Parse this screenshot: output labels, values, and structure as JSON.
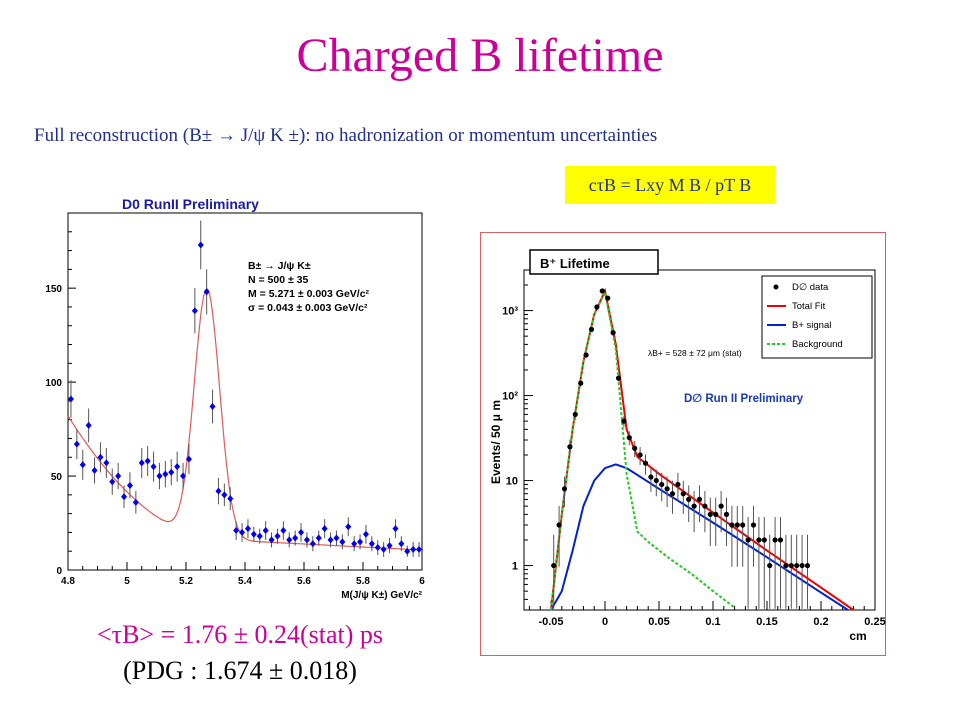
{
  "slide": {
    "title": "Charged B lifetime",
    "subtitle": "Full reconstruction (B± → J/ψ K ±): no hadronization or momentum uncertainties",
    "formula": "cτB = Lxy M B / pT B",
    "result": "<τB> = 1.76 ± 0.24(stat) ps",
    "pdg": "(PDG : 1.674 ± 0.018)"
  },
  "colors": {
    "title": "#cc0099",
    "subtitle": "#1f2f8f",
    "formula_bg": "#ffff00",
    "mass_points": "#0000ee",
    "mass_fit": "#e05a5a",
    "total_fit": "#ee0000",
    "signal": "#0022cc",
    "background": "#22cc22"
  },
  "chart_data": [
    {
      "type": "scatter",
      "title": "D0 RunII  Preliminary",
      "xlabel": "M(J/ψ K±) GeV/c²",
      "ylabel": "",
      "xlim": [
        4.8,
        6.0
      ],
      "ylim": [
        0,
        190
      ],
      "xticks": [
        "4.8",
        "5",
        "5.2",
        "5.4",
        "5.6",
        "5.8",
        "6"
      ],
      "yticks": [
        "0",
        "50",
        "100",
        "150"
      ],
      "annotations": [
        "B± → J/ψ K±",
        "N  =  500 ± 35",
        "M  =  5.271 ± 0.003 GeV/c²",
        "σ = 0.043 ± 0.003 GeV/c²"
      ],
      "series": [
        {
          "points": [
            {
              "x": 4.81,
              "y": 91,
              "err": 10
            },
            {
              "x": 4.83,
              "y": 67,
              "err": 8
            },
            {
              "x": 4.85,
              "y": 56,
              "err": 8
            },
            {
              "x": 4.87,
              "y": 77,
              "err": 9
            },
            {
              "x": 4.89,
              "y": 53,
              "err": 7
            },
            {
              "x": 4.91,
              "y": 60,
              "err": 8
            },
            {
              "x": 4.93,
              "y": 57,
              "err": 8
            },
            {
              "x": 4.95,
              "y": 47,
              "err": 7
            },
            {
              "x": 4.97,
              "y": 50,
              "err": 7
            },
            {
              "x": 4.99,
              "y": 39,
              "err": 6
            },
            {
              "x": 5.01,
              "y": 45,
              "err": 7
            },
            {
              "x": 5.03,
              "y": 36,
              "err": 6
            },
            {
              "x": 5.05,
              "y": 57,
              "err": 8
            },
            {
              "x": 5.07,
              "y": 58,
              "err": 8
            },
            {
              "x": 5.09,
              "y": 55,
              "err": 8
            },
            {
              "x": 5.11,
              "y": 50,
              "err": 7
            },
            {
              "x": 5.13,
              "y": 51,
              "err": 7
            },
            {
              "x": 5.15,
              "y": 52,
              "err": 7
            },
            {
              "x": 5.17,
              "y": 55,
              "err": 8
            },
            {
              "x": 5.19,
              "y": 50,
              "err": 7
            },
            {
              "x": 5.21,
              "y": 59,
              "err": 8
            },
            {
              "x": 5.23,
              "y": 138,
              "err": 12
            },
            {
              "x": 5.25,
              "y": 173,
              "err": 13
            },
            {
              "x": 5.27,
              "y": 148,
              "err": 12
            },
            {
              "x": 5.29,
              "y": 87,
              "err": 9
            },
            {
              "x": 5.31,
              "y": 42,
              "err": 7
            },
            {
              "x": 5.33,
              "y": 40,
              "err": 6
            },
            {
              "x": 5.35,
              "y": 38,
              "err": 6
            },
            {
              "x": 5.37,
              "y": 21,
              "err": 5
            },
            {
              "x": 5.39,
              "y": 20,
              "err": 5
            },
            {
              "x": 5.41,
              "y": 22,
              "err": 5
            },
            {
              "x": 5.43,
              "y": 19,
              "err": 4
            },
            {
              "x": 5.45,
              "y": 18,
              "err": 4
            },
            {
              "x": 5.47,
              "y": 21,
              "err": 5
            },
            {
              "x": 5.49,
              "y": 16,
              "err": 4
            },
            {
              "x": 5.51,
              "y": 18,
              "err": 4
            },
            {
              "x": 5.53,
              "y": 21,
              "err": 5
            },
            {
              "x": 5.55,
              "y": 16,
              "err": 4
            },
            {
              "x": 5.57,
              "y": 17,
              "err": 4
            },
            {
              "x": 5.59,
              "y": 20,
              "err": 5
            },
            {
              "x": 5.61,
              "y": 16,
              "err": 4
            },
            {
              "x": 5.63,
              "y": 14,
              "err": 4
            },
            {
              "x": 5.65,
              "y": 17,
              "err": 4
            },
            {
              "x": 5.67,
              "y": 22,
              "err": 5
            },
            {
              "x": 5.69,
              "y": 16,
              "err": 4
            },
            {
              "x": 5.71,
              "y": 17,
              "err": 4
            },
            {
              "x": 5.73,
              "y": 15,
              "err": 4
            },
            {
              "x": 5.75,
              "y": 23,
              "err": 5
            },
            {
              "x": 5.77,
              "y": 14,
              "err": 4
            },
            {
              "x": 5.79,
              "y": 15,
              "err": 4
            },
            {
              "x": 5.81,
              "y": 19,
              "err": 5
            },
            {
              "x": 5.83,
              "y": 14,
              "err": 4
            },
            {
              "x": 5.85,
              "y": 12,
              "err": 4
            },
            {
              "x": 5.87,
              "y": 11,
              "err": 4
            },
            {
              "x": 5.89,
              "y": 13,
              "err": 4
            },
            {
              "x": 5.91,
              "y": 22,
              "err": 5
            },
            {
              "x": 5.93,
              "y": 14,
              "err": 4
            },
            {
              "x": 5.95,
              "y": 10,
              "err": 3
            },
            {
              "x": 5.97,
              "y": 11,
              "err": 4
            },
            {
              "x": 5.99,
              "y": 11,
              "err": 4
            }
          ]
        }
      ]
    },
    {
      "type": "scatter",
      "title": "B⁺ Lifetime",
      "subtitle": "D∅ Run II Preliminary",
      "xlabel": "cm",
      "ylabel": "Events/ 50 μ m",
      "yscale": "log",
      "xlim": [
        -0.075,
        0.25
      ],
      "ylim": [
        0.3,
        3000
      ],
      "xticks": [
        "-0.05",
        "0",
        "0.05",
        "0.1",
        "0.15",
        "0.2",
        "0.25"
      ],
      "yticks": [
        "1",
        "10",
        "10²",
        "10³"
      ],
      "annotation": "λB+ = 528 ± 72 μm (stat)",
      "legend_position": "top-right",
      "legend": [
        "D∅ data",
        "Total Fit",
        "B+ signal",
        "Background"
      ],
      "series": [
        {
          "name": "D∅ data",
          "points": [
            {
              "x": -0.0475,
              "y": 1
            },
            {
              "x": -0.0425,
              "y": 3
            },
            {
              "x": -0.0375,
              "y": 8
            },
            {
              "x": -0.0325,
              "y": 25
            },
            {
              "x": -0.0275,
              "y": 60
            },
            {
              "x": -0.0225,
              "y": 140
            },
            {
              "x": -0.0175,
              "y": 300
            },
            {
              "x": -0.0125,
              "y": 600
            },
            {
              "x": -0.0075,
              "y": 1100
            },
            {
              "x": -0.0025,
              "y": 1700
            },
            {
              "x": 0.0025,
              "y": 1400
            },
            {
              "x": 0.0075,
              "y": 550
            },
            {
              "x": 0.0125,
              "y": 160
            },
            {
              "x": 0.0175,
              "y": 50
            },
            {
              "x": 0.0225,
              "y": 32
            },
            {
              "x": 0.0275,
              "y": 24
            },
            {
              "x": 0.0325,
              "y": 20
            },
            {
              "x": 0.0375,
              "y": 16
            },
            {
              "x": 0.0425,
              "y": 11
            },
            {
              "x": 0.0475,
              "y": 10
            },
            {
              "x": 0.0525,
              "y": 9
            },
            {
              "x": 0.0575,
              "y": 8
            },
            {
              "x": 0.0625,
              "y": 7
            },
            {
              "x": 0.0675,
              "y": 9
            },
            {
              "x": 0.0725,
              "y": 7
            },
            {
              "x": 0.0775,
              "y": 6
            },
            {
              "x": 0.0825,
              "y": 5
            },
            {
              "x": 0.0875,
              "y": 6
            },
            {
              "x": 0.0925,
              "y": 5
            },
            {
              "x": 0.0975,
              "y": 4
            },
            {
              "x": 0.1025,
              "y": 4
            },
            {
              "x": 0.1075,
              "y": 5
            },
            {
              "x": 0.1125,
              "y": 4
            },
            {
              "x": 0.1175,
              "y": 3
            },
            {
              "x": 0.1225,
              "y": 3
            },
            {
              "x": 0.1275,
              "y": 3
            },
            {
              "x": 0.1325,
              "y": 2
            },
            {
              "x": 0.1375,
              "y": 3
            },
            {
              "x": 0.1425,
              "y": 2
            },
            {
              "x": 0.1475,
              "y": 2
            },
            {
              "x": 0.1525,
              "y": 1
            },
            {
              "x": 0.1575,
              "y": 2
            },
            {
              "x": 0.1625,
              "y": 2
            },
            {
              "x": 0.1675,
              "y": 1
            },
            {
              "x": 0.1725,
              "y": 1
            },
            {
              "x": 0.1775,
              "y": 1
            },
            {
              "x": 0.1825,
              "y": 1
            },
            {
              "x": 0.1875,
              "y": 1
            }
          ]
        },
        {
          "name": "Total Fit",
          "points": [
            {
              "x": -0.05,
              "y": 0.3
            },
            {
              "x": -0.04,
              "y": 4
            },
            {
              "x": -0.03,
              "y": 40
            },
            {
              "x": -0.02,
              "y": 250
            },
            {
              "x": -0.01,
              "y": 900
            },
            {
              "x": 0.0,
              "y": 1700
            },
            {
              "x": 0.01,
              "y": 400
            },
            {
              "x": 0.02,
              "y": 40
            },
            {
              "x": 0.03,
              "y": 19
            },
            {
              "x": 0.05,
              "y": 12
            },
            {
              "x": 0.1,
              "y": 4.2
            },
            {
              "x": 0.15,
              "y": 1.5
            },
            {
              "x": 0.2,
              "y": 0.55
            },
            {
              "x": 0.23,
              "y": 0.3
            }
          ]
        },
        {
          "name": "B+ signal",
          "points": [
            {
              "x": -0.05,
              "y": 0.3
            },
            {
              "x": -0.04,
              "y": 0.5
            },
            {
              "x": -0.03,
              "y": 1.5
            },
            {
              "x": -0.02,
              "y": 5
            },
            {
              "x": -0.01,
              "y": 10
            },
            {
              "x": 0.0,
              "y": 14
            },
            {
              "x": 0.01,
              "y": 15.5
            },
            {
              "x": 0.02,
              "y": 14
            },
            {
              "x": 0.05,
              "y": 8
            },
            {
              "x": 0.1,
              "y": 3.2
            },
            {
              "x": 0.15,
              "y": 1.25
            },
            {
              "x": 0.2,
              "y": 0.48
            },
            {
              "x": 0.225,
              "y": 0.3
            }
          ]
        },
        {
          "name": "Background",
          "points": [
            {
              "x": -0.05,
              "y": 0.3
            },
            {
              "x": -0.04,
              "y": 4
            },
            {
              "x": -0.03,
              "y": 40
            },
            {
              "x": -0.02,
              "y": 250
            },
            {
              "x": -0.01,
              "y": 900
            },
            {
              "x": 0.0,
              "y": 1650
            },
            {
              "x": 0.01,
              "y": 350
            },
            {
              "x": 0.02,
              "y": 12
            },
            {
              "x": 0.03,
              "y": 2.5
            },
            {
              "x": 0.04,
              "y": 1.9
            },
            {
              "x": 0.06,
              "y": 1.2
            },
            {
              "x": 0.08,
              "y": 0.8
            },
            {
              "x": 0.1,
              "y": 0.5
            },
            {
              "x": 0.12,
              "y": 0.32
            }
          ]
        }
      ]
    }
  ]
}
